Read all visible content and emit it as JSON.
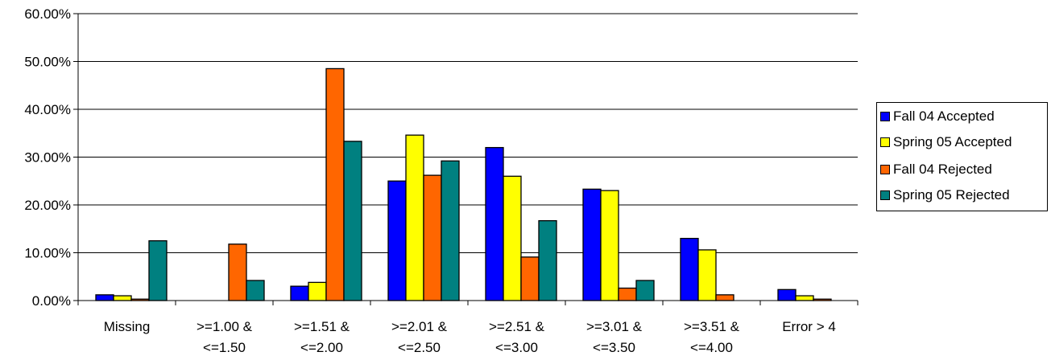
{
  "chart_data": {
    "type": "bar",
    "categories": [
      [
        "Missing"
      ],
      [
        ">=1.00 &",
        "<=1.50"
      ],
      [
        ">=1.51 &",
        "<=2.00"
      ],
      [
        ">=2.01 &",
        "<=2.50"
      ],
      [
        ">=2.51 &",
        "<=3.00"
      ],
      [
        ">=3.01 &",
        "<=3.50"
      ],
      [
        ">=3.51 &",
        "<=4.00"
      ],
      [
        "Error > 4"
      ]
    ],
    "series": [
      {
        "name": "Fall 04 Accepted",
        "color": "#0000ff",
        "values": [
          1.2,
          0.0,
          3.0,
          25.0,
          32.0,
          23.3,
          13.0,
          2.3
        ]
      },
      {
        "name": "Spring 05 Accepted",
        "color": "#ffff00",
        "values": [
          1.0,
          0.0,
          3.8,
          34.6,
          26.0,
          23.0,
          10.6,
          1.0
        ]
      },
      {
        "name": "Fall 04 Rejected",
        "color": "#ff6600",
        "values": [
          0.3,
          11.8,
          48.5,
          26.2,
          9.1,
          2.6,
          1.2,
          0.3
        ]
      },
      {
        "name": "Spring 05 Rejected",
        "color": "#008080",
        "values": [
          12.5,
          4.2,
          33.3,
          29.2,
          16.7,
          4.2,
          0.0,
          0.0
        ]
      }
    ],
    "ylim": [
      0,
      60
    ],
    "yticks": [
      "0.00%",
      "10.00%",
      "20.00%",
      "30.00%",
      "40.00%",
      "50.00%",
      "60.00%"
    ],
    "title": "",
    "xlabel": "",
    "ylabel": "",
    "grid": true,
    "legend_position": "right"
  }
}
